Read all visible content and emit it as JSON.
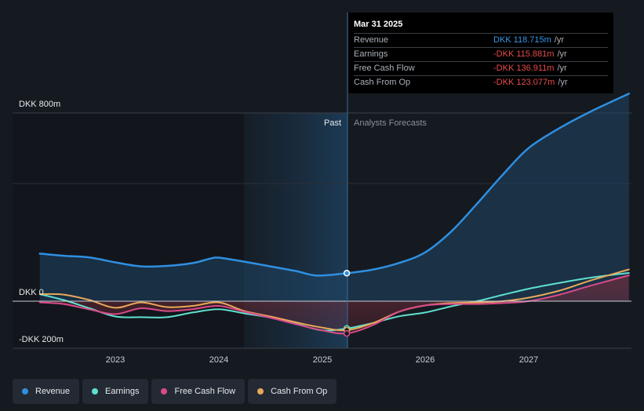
{
  "chart_data": {
    "type": "line",
    "x_ticks": [
      "2023",
      "2024",
      "2025",
      "2026",
      "2027"
    ],
    "y_ticks": [
      "DKK 800m",
      "DKK 0",
      "-DKK 200m"
    ],
    "ylim": [
      -200,
      800
    ],
    "past_label": "Past",
    "forecast_label": "Analysts Forecasts",
    "series": [
      {
        "name": "Revenue",
        "color": "#2f8fe0",
        "x": [
          2022.27,
          2022.5,
          2022.75,
          2023.0,
          2023.25,
          2023.5,
          2023.75,
          2023.92,
          2024.0,
          2024.25,
          2024.5,
          2024.75,
          2024.95,
          2025.24,
          2025.5,
          2025.75,
          2026.0,
          2026.25,
          2026.5,
          2026.75,
          2027.0,
          2027.3,
          2027.6,
          2027.97
        ],
        "values": [
          202,
          193,
          186,
          165,
          148,
          150,
          162,
          181,
          185,
          168,
          148,
          128,
          109,
          119,
          135,
          163,
          208,
          296,
          414,
          538,
          651,
          736,
          806,
          882
        ]
      },
      {
        "name": "Earnings",
        "color": "#5fe0cf",
        "x": [
          2022.27,
          2022.5,
          2022.75,
          2023.0,
          2023.25,
          2023.5,
          2023.75,
          2024.0,
          2024.25,
          2024.5,
          2024.75,
          2025.0,
          2025.24,
          2025.5,
          2025.75,
          2026.0,
          2026.25,
          2026.5,
          2026.75,
          2027.0,
          2027.3,
          2027.6,
          2027.97
        ],
        "values": [
          30,
          5,
          -30,
          -65,
          -68,
          -68,
          -48,
          -34,
          -52,
          -70,
          -96,
          -124,
          -116,
          -92,
          -64,
          -48,
          -22,
          0,
          27,
          53,
          78,
          100,
          120
        ]
      },
      {
        "name": "Free Cash Flow",
        "color": "#d84b8a",
        "x": [
          2022.27,
          2022.5,
          2022.75,
          2023.0,
          2023.25,
          2023.5,
          2023.75,
          2024.0,
          2024.25,
          2024.5,
          2024.75,
          2025.0,
          2025.24,
          2025.5,
          2025.75,
          2026.0,
          2026.25,
          2026.5,
          2026.75,
          2027.0,
          2027.3,
          2027.6,
          2027.97
        ],
        "values": [
          -5,
          -12,
          -35,
          -55,
          -30,
          -42,
          -34,
          -20,
          -45,
          -70,
          -98,
          -124,
          -137,
          -100,
          -44,
          -18,
          -12,
          -12,
          -8,
          0,
          28,
          66,
          110
        ]
      },
      {
        "name": "Cash From Op",
        "color": "#e8a85a",
        "x": [
          2022.27,
          2022.5,
          2022.75,
          2023.0,
          2023.25,
          2023.5,
          2023.75,
          2024.0,
          2024.25,
          2024.5,
          2024.75,
          2025.0,
          2025.24,
          2025.5,
          2025.75,
          2026.0,
          2026.25,
          2026.5,
          2026.75,
          2027.0,
          2027.3,
          2027.6,
          2027.97
        ],
        "values": [
          30,
          28,
          5,
          -28,
          -5,
          -25,
          -20,
          -5,
          -42,
          -65,
          -90,
          -112,
          -123,
          -92,
          -44,
          -18,
          -8,
          -5,
          0,
          15,
          45,
          88,
          135
        ]
      }
    ]
  },
  "tooltip": {
    "date": "Mar 31 2025",
    "rows": [
      {
        "label": "Revenue",
        "value": "DKK 118.715m",
        "unit": "/yr"
      },
      {
        "label": "Earnings",
        "value": "-DKK 115.881m",
        "unit": "/yr"
      },
      {
        "label": "Free Cash Flow",
        "value": "-DKK 136.911m",
        "unit": "/yr"
      },
      {
        "label": "Cash From Op",
        "value": "-DKK 123.077m",
        "unit": "/yr"
      }
    ]
  },
  "legend": [
    {
      "label": "Revenue",
      "color": "#2f8fe0"
    },
    {
      "label": "Earnings",
      "color": "#5fe0cf"
    },
    {
      "label": "Free Cash Flow",
      "color": "#d84b8a"
    },
    {
      "label": "Cash From Op",
      "color": "#e8a85a"
    }
  ]
}
